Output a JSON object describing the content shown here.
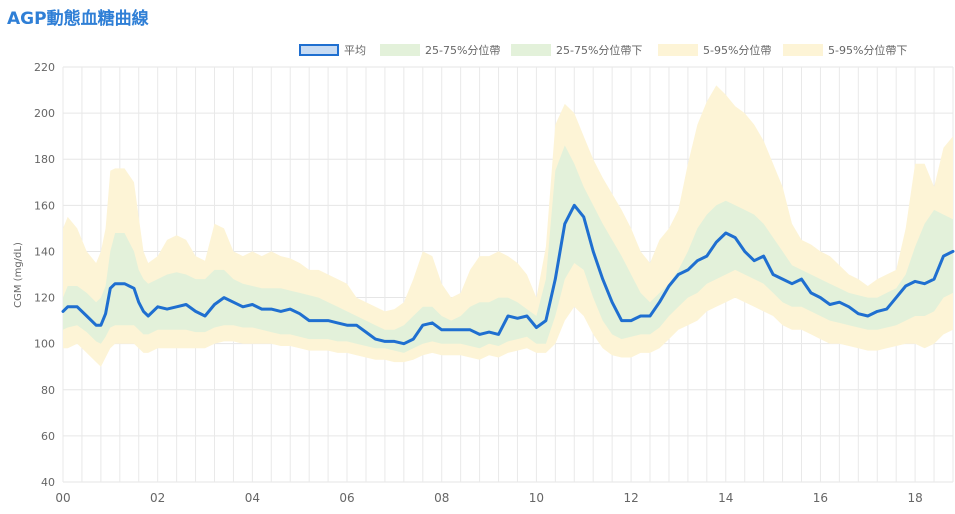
{
  "header": {
    "title": "AGP動態血糖曲線"
  },
  "legend": [
    {
      "label": "平均",
      "color": "#1f6fd0",
      "fill": "rgba(31,111,208,0.25)",
      "stroke": "#1f6fd0"
    },
    {
      "label": "25-75%分位帶",
      "color": "#e3f1da",
      "fill": "#e3f1da",
      "stroke": "none"
    },
    {
      "label": "25-75%分位帶下",
      "color": "#e3f1da",
      "fill": "#e3f1da",
      "stroke": "none"
    },
    {
      "label": "5-95%分位帶",
      "color": "#fdf4d6",
      "fill": "#fdf4d6",
      "stroke": "none"
    },
    {
      "label": "5-95%分位帶下",
      "color": "#fdf4d6",
      "fill": "#fdf4d6",
      "stroke": "none"
    }
  ],
  "chart_data": {
    "type": "line",
    "title": "AGP動態血糖曲線",
    "xlabel": "",
    "ylabel": "CGM (mg/dL)",
    "xlim": [
      0,
      18.8
    ],
    "ylim": [
      40,
      220
    ],
    "y_ticks": [
      40,
      60,
      80,
      100,
      120,
      140,
      160,
      180,
      200,
      220
    ],
    "x_ticks": [
      0,
      2,
      4,
      6,
      8,
      10,
      12,
      14,
      16,
      18
    ],
    "x_tick_labels": [
      "00",
      "02",
      "04",
      "06",
      "08",
      "10",
      "12",
      "14",
      "16",
      "18"
    ],
    "grid": true,
    "legend_position": "top-right",
    "x": [
      0.0,
      0.1,
      0.3,
      0.5,
      0.7,
      0.8,
      0.9,
      1.0,
      1.1,
      1.3,
      1.5,
      1.6,
      1.7,
      1.8,
      2.0,
      2.2,
      2.4,
      2.6,
      2.8,
      3.0,
      3.2,
      3.4,
      3.6,
      3.8,
      4.0,
      4.2,
      4.4,
      4.6,
      4.8,
      5.0,
      5.2,
      5.4,
      5.6,
      5.8,
      6.0,
      6.2,
      6.4,
      6.6,
      6.8,
      7.0,
      7.2,
      7.4,
      7.6,
      7.8,
      8.0,
      8.2,
      8.4,
      8.6,
      8.8,
      9.0,
      9.2,
      9.4,
      9.6,
      9.8,
      10.0,
      10.2,
      10.4,
      10.6,
      10.8,
      11.0,
      11.2,
      11.4,
      11.6,
      11.8,
      12.0,
      12.2,
      12.4,
      12.6,
      12.8,
      13.0,
      13.2,
      13.4,
      13.6,
      13.8,
      14.0,
      14.2,
      14.4,
      14.6,
      14.8,
      15.0,
      15.2,
      15.4,
      15.6,
      15.8,
      16.0,
      16.2,
      16.4,
      16.6,
      16.8,
      17.0,
      17.2,
      17.4,
      17.6,
      17.8,
      18.0,
      18.2,
      18.4,
      18.6,
      18.8
    ],
    "series": [
      {
        "name": "5-95%分位帶",
        "values": [
          150,
          155,
          150,
          140,
          135,
          140,
          150,
          175,
          176,
          176,
          170,
          155,
          140,
          135,
          138,
          145,
          147,
          145,
          138,
          136,
          152,
          150,
          140,
          138,
          140,
          138,
          140,
          138,
          137,
          135,
          132,
          132,
          130,
          128,
          126,
          120,
          118,
          116,
          114,
          115,
          118,
          128,
          140,
          138,
          126,
          120,
          122,
          132,
          138,
          138,
          140,
          138,
          135,
          130,
          120,
          142,
          195,
          204,
          200,
          190,
          180,
          172,
          165,
          158,
          150,
          140,
          135,
          145,
          150,
          158,
          178,
          195,
          205,
          212,
          208,
          203,
          200,
          195,
          188,
          178,
          168,
          152,
          145,
          143,
          140,
          138,
          134,
          130,
          128,
          125,
          128,
          130,
          132,
          150,
          178,
          178,
          168,
          185,
          190
        ]
      },
      {
        "name": "25-75%分位帶",
        "values": [
          120,
          125,
          125,
          122,
          118,
          120,
          125,
          140,
          148,
          148,
          140,
          132,
          128,
          126,
          128,
          130,
          131,
          130,
          128,
          128,
          132,
          132,
          128,
          126,
          125,
          124,
          124,
          124,
          123,
          122,
          121,
          120,
          118,
          116,
          114,
          112,
          110,
          108,
          106,
          106,
          108,
          112,
          116,
          116,
          112,
          110,
          112,
          116,
          118,
          118,
          120,
          120,
          118,
          115,
          112,
          128,
          175,
          186,
          178,
          168,
          160,
          152,
          145,
          138,
          130,
          122,
          118,
          122,
          126,
          132,
          140,
          150,
          156,
          160,
          162,
          160,
          158,
          156,
          152,
          146,
          140,
          134,
          132,
          130,
          128,
          126,
          124,
          122,
          121,
          120,
          120,
          122,
          124,
          130,
          142,
          152,
          158,
          156,
          154
        ]
      },
      {
        "name": "平均",
        "values": [
          114,
          116,
          116,
          112,
          108,
          108,
          113,
          124,
          126,
          126,
          124,
          118,
          114,
          112,
          116,
          115,
          116,
          117,
          114,
          112,
          117,
          120,
          118,
          116,
          117,
          115,
          115,
          114,
          115,
          113,
          110,
          110,
          110,
          109,
          108,
          108,
          105,
          102,
          101,
          101,
          100,
          102,
          108,
          109,
          106,
          106,
          106,
          106,
          104,
          105,
          104,
          112,
          111,
          112,
          107,
          110,
          128,
          152,
          160,
          155,
          140,
          128,
          118,
          110,
          110,
          112,
          112,
          118,
          125,
          130,
          132,
          136,
          138,
          144,
          148,
          146,
          140,
          136,
          138,
          130,
          128,
          126,
          128,
          122,
          120,
          117,
          118,
          116,
          113,
          112,
          114,
          115,
          120,
          125,
          127,
          126,
          128,
          138,
          140
        ]
      },
      {
        "name": "25-75%分位帶下",
        "values": [
          106,
          107,
          108,
          105,
          101,
          100,
          103,
          107,
          108,
          108,
          108,
          106,
          104,
          104,
          106,
          106,
          106,
          106,
          105,
          105,
          107,
          108,
          108,
          107,
          107,
          106,
          105,
          104,
          104,
          103,
          102,
          102,
          102,
          101,
          101,
          100,
          99,
          98,
          98,
          97,
          96,
          98,
          100,
          101,
          100,
          100,
          100,
          99,
          98,
          100,
          99,
          101,
          102,
          103,
          100,
          100,
          112,
          128,
          135,
          132,
          120,
          110,
          104,
          102,
          103,
          104,
          104,
          107,
          112,
          116,
          120,
          122,
          126,
          128,
          130,
          132,
          130,
          128,
          126,
          122,
          118,
          116,
          116,
          114,
          112,
          110,
          109,
          108,
          107,
          106,
          106,
          107,
          108,
          110,
          112,
          112,
          114,
          120,
          122
        ]
      },
      {
        "name": "5-95%分位帶下",
        "values": [
          98,
          98,
          100,
          96,
          92,
          90,
          94,
          98,
          100,
          100,
          100,
          98,
          96,
          96,
          98,
          98,
          98,
          98,
          98,
          98,
          100,
          101,
          101,
          100,
          100,
          100,
          100,
          99,
          99,
          98,
          97,
          97,
          97,
          96,
          96,
          95,
          94,
          93,
          93,
          92,
          92,
          93,
          95,
          96,
          95,
          95,
          95,
          94,
          93,
          95,
          94,
          96,
          97,
          98,
          96,
          96,
          100,
          110,
          116,
          112,
          104,
          98,
          95,
          94,
          94,
          96,
          96,
          98,
          102,
          106,
          108,
          110,
          114,
          116,
          118,
          120,
          118,
          116,
          114,
          112,
          108,
          106,
          106,
          104,
          102,
          100,
          100,
          99,
          98,
          97,
          97,
          98,
          99,
          100,
          100,
          98,
          100,
          104,
          106
        ]
      }
    ]
  }
}
